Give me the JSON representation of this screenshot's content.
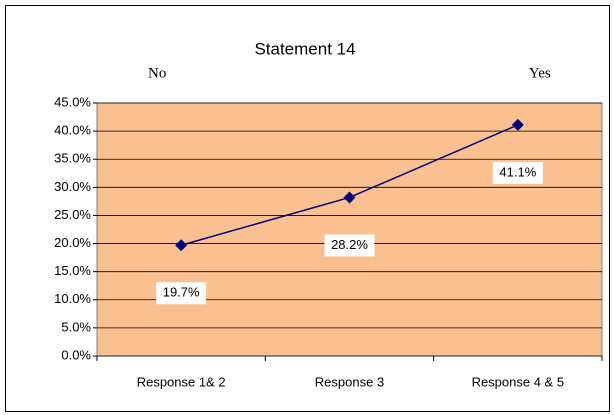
{
  "chart_data": {
    "type": "line",
    "title": "Statement 14",
    "annotations": [
      "No",
      "Yes"
    ],
    "categories": [
      "Response 1& 2",
      "Response 3",
      "Response 4 & 5"
    ],
    "series": [
      {
        "name": "Statement 14",
        "color": "#000080",
        "values": [
          19.7,
          28.2,
          41.1
        ],
        "value_labels": [
          "19.7%",
          "28.2%",
          "41.1%"
        ]
      }
    ],
    "ylim": [
      0,
      45
    ],
    "yticks": [
      {
        "value": 0,
        "label": "0.0%"
      },
      {
        "value": 5,
        "label": "5.0%"
      },
      {
        "value": 10,
        "label": "10.0%"
      },
      {
        "value": 15,
        "label": "15.0%"
      },
      {
        "value": 20,
        "label": "20.0%"
      },
      {
        "value": 25,
        "label": "25.0%"
      },
      {
        "value": 30,
        "label": "30.0%"
      },
      {
        "value": 35,
        "label": "35.0%"
      },
      {
        "value": 40,
        "label": "40.0%"
      },
      {
        "value": 45,
        "label": "45.0%"
      }
    ],
    "grid": true,
    "plot_background": "#FAC090"
  }
}
